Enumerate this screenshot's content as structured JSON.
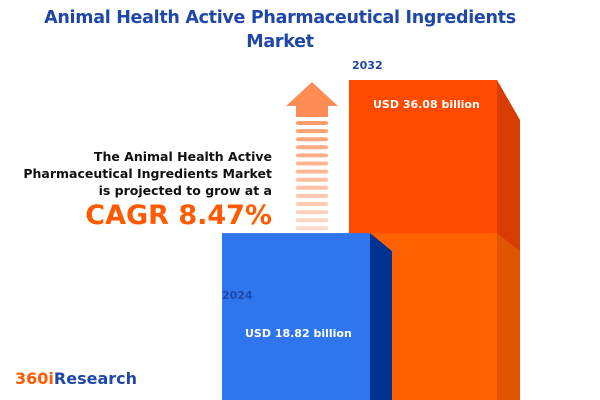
{
  "title": "Animal Health Active Pharmaceutical Ingredients Market",
  "description": [
    "The Animal Health Active",
    "Pharmaceutical Ingredients Market",
    "is projected to grow at a"
  ],
  "cagr": "CAGR 8.47%",
  "logo": {
    "part1": "360i",
    "part2": "Research"
  },
  "colors": {
    "bar_2024": "#2f76ee",
    "bar_2032": "#ff4a00",
    "title": "#1f47a8",
    "accent": "#ff5a00"
  },
  "chart_data": {
    "type": "bar",
    "title": "Animal Health Active Pharmaceutical Ingredients Market",
    "categories": [
      "2024",
      "2032"
    ],
    "values": [
      18.82,
      36.08
    ],
    "unit": "USD billion",
    "data_labels": [
      "USD 18.82 billion",
      "USD 36.08 billion"
    ],
    "cagr_percent": 8.47
  }
}
